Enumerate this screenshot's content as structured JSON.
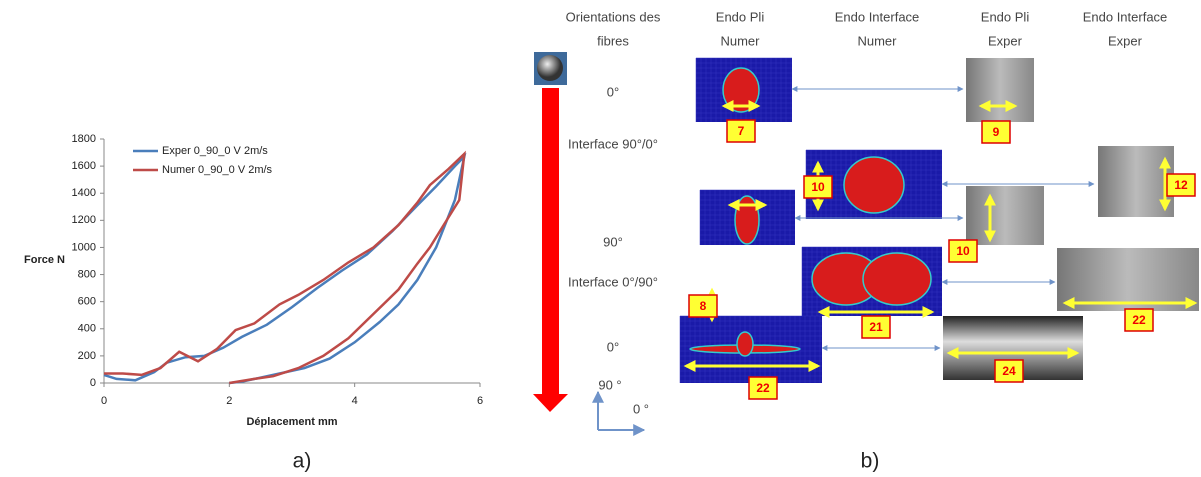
{
  "chart_data": {
    "type": "line",
    "xlabel": "Déplacement  mm",
    "ylabel": "Force  N",
    "xlim": [
      0,
      6
    ],
    "ylim": [
      0,
      1800
    ],
    "xticks": [
      0,
      2,
      4,
      6
    ],
    "yticks": [
      0,
      200,
      400,
      600,
      800,
      1000,
      1200,
      1400,
      1600,
      1800
    ],
    "grid": false,
    "legend": "top-left",
    "series": [
      {
        "name": "Exper 0_90_0 V 2m/s",
        "color": "#4a7ebb",
        "x": [
          0,
          0.2,
          0.5,
          0.8,
          1.0,
          1.3,
          1.6,
          1.9,
          2.2,
          2.6,
          3.0,
          3.4,
          3.8,
          4.2,
          4.6,
          5.0,
          5.3,
          5.6,
          5.75,
          5.6,
          5.3,
          5.0,
          4.7,
          4.4,
          4.0,
          3.6,
          3.2,
          2.8,
          2.5,
          2.2,
          2.0
        ],
        "values": [
          60,
          30,
          20,
          80,
          150,
          190,
          200,
          260,
          340,
          430,
          560,
          700,
          830,
          950,
          1120,
          1310,
          1450,
          1600,
          1670,
          1350,
          1000,
          760,
          580,
          450,
          300,
          180,
          110,
          70,
          40,
          10,
          0
        ]
      },
      {
        "name": "Numer 0_90_0 V 2m/s",
        "color": "#be4b48",
        "x": [
          0,
          0.3,
          0.6,
          0.9,
          1.2,
          1.5,
          1.8,
          2.1,
          2.4,
          2.8,
          3.1,
          3.5,
          3.9,
          4.3,
          4.7,
          5.0,
          5.2,
          5.5,
          5.75,
          5.67,
          5.4,
          5.2,
          5.0,
          4.7,
          4.3,
          3.9,
          3.5,
          3.1,
          2.7,
          2.4,
          2.0
        ],
        "values": [
          70,
          70,
          60,
          110,
          230,
          160,
          250,
          390,
          440,
          580,
          650,
          760,
          890,
          1000,
          1165,
          1330,
          1460,
          1580,
          1690,
          1350,
          1150,
          1000,
          880,
          690,
          510,
          330,
          200,
          110,
          50,
          30,
          0
        ]
      }
    ]
  },
  "figure": {
    "captions": [
      "a)",
      "b)"
    ],
    "headers": [
      "Orientations des",
      "fibres",
      "Endo Pli",
      "Numer",
      "Endo Interface",
      "Numer",
      "Endo Pli",
      "Exper",
      "Endo Interface",
      "Exper"
    ],
    "rows": [
      "0°",
      "Interface 90°/0°",
      "90°",
      "Interface 0°/90°",
      "0°"
    ],
    "axes": [
      "90 °",
      "0 °"
    ],
    "size_labels": [
      7,
      9,
      10,
      12,
      8,
      10,
      21,
      22,
      22,
      24
    ]
  }
}
